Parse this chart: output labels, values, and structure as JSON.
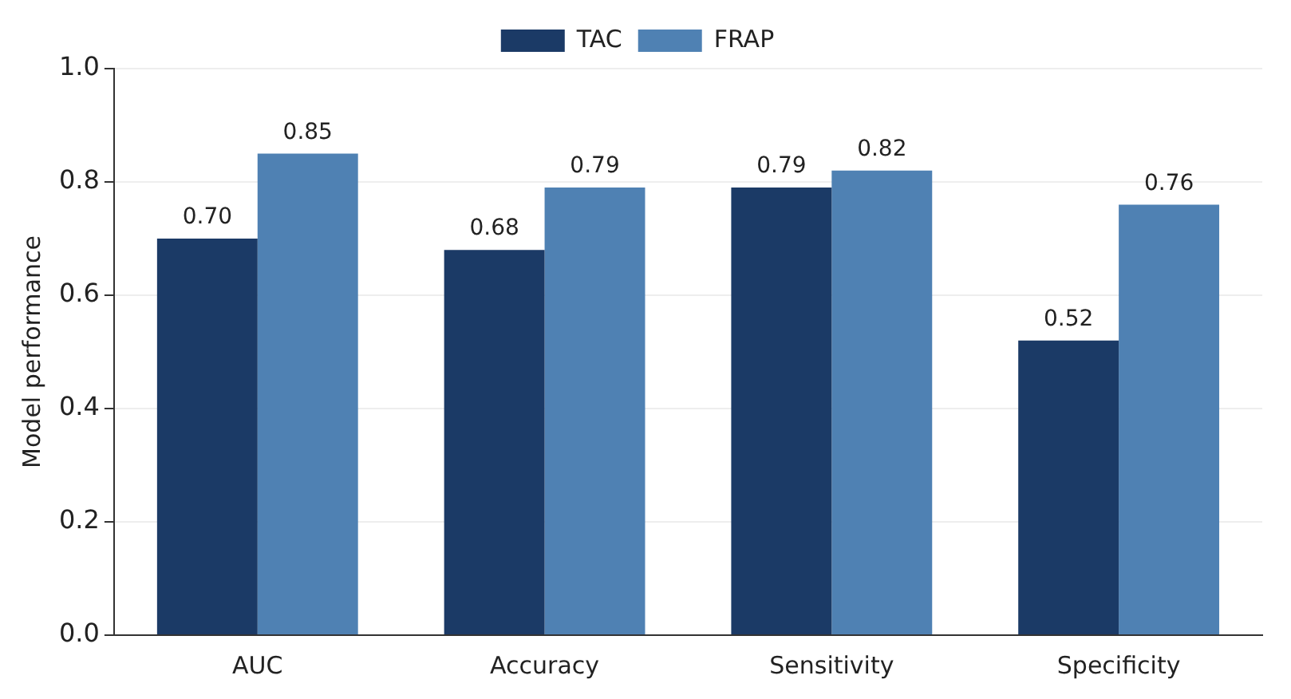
{
  "chart_data": {
    "type": "bar",
    "ylabel": "Model performance",
    "categories": [
      "AUC",
      "Accuracy",
      "Sensitivity",
      "Specificity"
    ],
    "series": [
      {
        "name": "TAC",
        "color": "#1b3a66",
        "values": [
          0.7,
          0.68,
          0.79,
          0.52
        ],
        "value_labels": [
          "0.70",
          "0.68",
          "0.79",
          "0.52"
        ]
      },
      {
        "name": "FRAP",
        "color": "#4f81b3",
        "values": [
          0.85,
          0.79,
          0.82,
          0.76
        ],
        "value_labels": [
          "0.85",
          "0.79",
          "0.82",
          "0.76"
        ]
      }
    ],
    "ylim": [
      0,
      1.0
    ],
    "yticks": [
      {
        "value": 0,
        "label": "0.0"
      },
      {
        "value": 0.2,
        "label": "0.2"
      },
      {
        "value": 0.4,
        "label": "0.4"
      },
      {
        "value": 0.6,
        "label": "0.6"
      },
      {
        "value": 0.8,
        "label": "0.8"
      },
      {
        "value": 1.0,
        "label": "1.0"
      }
    ],
    "grid": "y",
    "legend": "top"
  }
}
